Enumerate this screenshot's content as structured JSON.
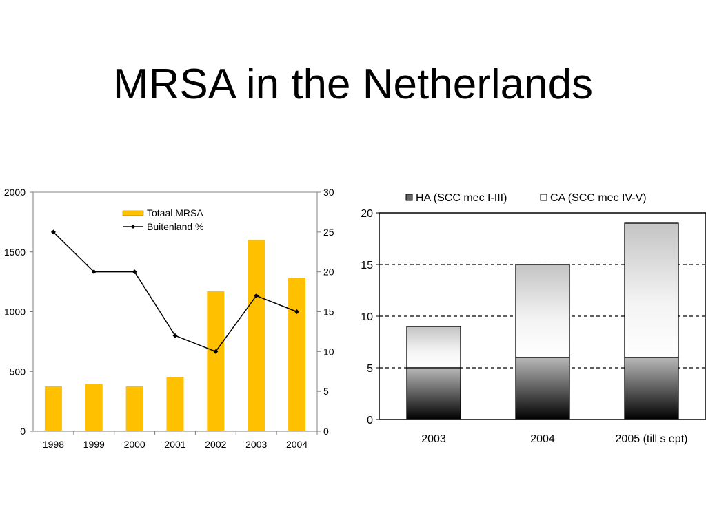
{
  "page": {
    "title": "MRSA in the Netherlands"
  },
  "chart_data": [
    {
      "type": "bar",
      "categories": [
        "1998",
        "1999",
        "2000",
        "2001",
        "2002",
        "2003",
        "2004"
      ],
      "series": [
        {
          "name": "Totaal MRSA",
          "type": "bar",
          "axis": "left",
          "color": "#FFC000",
          "values": [
            375,
            395,
            375,
            455,
            1170,
            1600,
            1285
          ]
        },
        {
          "name": "Buitenland %",
          "type": "line",
          "axis": "right",
          "color": "#000000",
          "values": [
            25,
            20,
            20,
            12,
            10,
            17,
            15
          ]
        }
      ],
      "ylim": [
        0,
        2000
      ],
      "yticks": [
        "0",
        "500",
        "1000",
        "1500",
        "2000"
      ],
      "y2lim": [
        0,
        30
      ],
      "y2ticks": [
        "0",
        "5",
        "10",
        "15",
        "20",
        "25",
        "30"
      ],
      "legend": [
        "Totaal MRSA",
        "Buitenland %"
      ],
      "legend_position": "top-center",
      "grid": false
    },
    {
      "type": "bar",
      "stacked": true,
      "categories": [
        "2003",
        "2004",
        "2005 (till s ept)"
      ],
      "series": [
        {
          "name": "HA (SCC mec I-III)",
          "values": [
            5,
            6,
            6
          ]
        },
        {
          "name": "CA (SCC mec IV-V)",
          "values": [
            4,
            9,
            13
          ]
        }
      ],
      "ylim": [
        0,
        20
      ],
      "yticks": [
        "0",
        "5",
        "10",
        "15",
        "20"
      ],
      "legend_position": "top",
      "grid": "dashed horizontal"
    }
  ]
}
